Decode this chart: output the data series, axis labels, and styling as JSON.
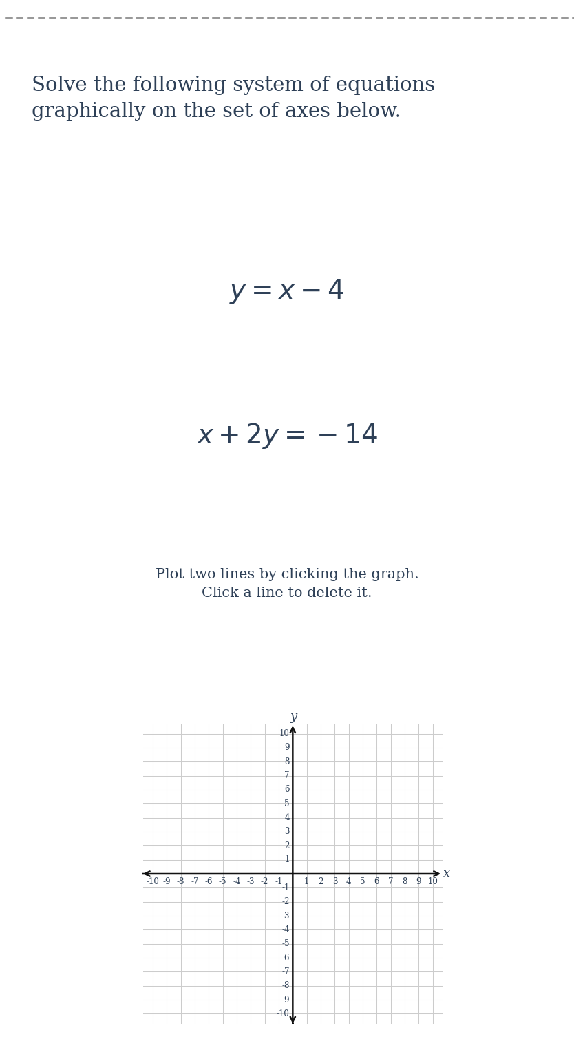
{
  "title_text": "Solve the following system of equations\ngraphically on the set of axes below.",
  "eq1": "$y = x - 4$",
  "eq2": "$x + 2y = -14$",
  "instruction": "Plot two lines by clicking the graph.\nClick a line to delete it.",
  "text_color": "#2e4057",
  "bg_color": "#ffffff",
  "grid_color": "#cccccc",
  "axis_color": "#111111",
  "dashed_line_color": "#999999",
  "x_min": -10,
  "x_max": 10,
  "y_min": -10,
  "y_max": 10,
  "title_fontsize": 21,
  "eq_fontsize": 28,
  "instruction_fontsize": 15,
  "tick_fontsize": 8.5,
  "axis_label_fontsize": 13
}
